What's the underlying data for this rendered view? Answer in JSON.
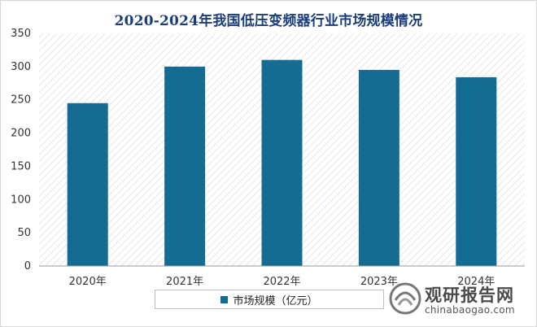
{
  "chart_data": {
    "type": "bar",
    "title": "2020-2024年我国低压变频器行业市场规模情况",
    "categories": [
      "2020年",
      "2021年",
      "2022年",
      "2023年",
      "2024年"
    ],
    "series": [
      {
        "name": "市场规模（亿元）",
        "values": [
          245,
          300,
          310,
          295,
          284
        ]
      }
    ],
    "ylim": [
      0,
      350
    ],
    "yticks": [
      0,
      50,
      100,
      150,
      200,
      250,
      300,
      350
    ],
    "xlabel": "",
    "ylabel": "",
    "grid": false,
    "legend": "bottom-center",
    "colors": {
      "bar": "#156c92",
      "title": "#1a3d7c"
    }
  },
  "watermark": {
    "name_cn": "观研报告网",
    "url": "chinabaogao.com"
  }
}
